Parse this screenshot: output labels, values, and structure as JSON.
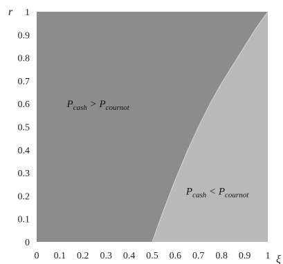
{
  "chart_data": {
    "type": "area",
    "title": "",
    "xlabel": "ξ",
    "ylabel": "r",
    "xlim": [
      0,
      1
    ],
    "ylim": [
      0,
      1
    ],
    "x_ticks": [
      "0",
      "0.1",
      "0.2",
      "0.3",
      "0.4",
      "0.5",
      "0.6",
      "0.7",
      "0.8",
      "0.9",
      "1"
    ],
    "y_ticks": [
      "0",
      "0.1",
      "0.2",
      "0.3",
      "0.4",
      "0.5",
      "0.6",
      "0.7",
      "0.8",
      "0.9",
      "1"
    ],
    "grid": false,
    "boundary": {
      "x": [
        0.5,
        0.55,
        0.6,
        0.65,
        0.7,
        0.75,
        0.8,
        0.85,
        0.9,
        0.95,
        1.0
      ],
      "y": [
        0.0,
        0.14,
        0.27,
        0.39,
        0.5,
        0.6,
        0.69,
        0.77,
        0.85,
        0.93,
        1.0
      ]
    },
    "regions": [
      {
        "name": "upper-left",
        "label_main": "P",
        "label_sub1": "cash",
        "label_op": " > ",
        "label_main2": "P",
        "label_sub2": "cournot",
        "color": "#8c8c8c",
        "label_at": [
          0.22,
          0.6
        ]
      },
      {
        "name": "lower-right",
        "label_main": "P",
        "label_sub1": "cash",
        "label_op": " < ",
        "label_main2": "P",
        "label_sub2": "cournot",
        "color": "#b9b9b9",
        "label_at": [
          0.85,
          0.22
        ]
      }
    ]
  }
}
